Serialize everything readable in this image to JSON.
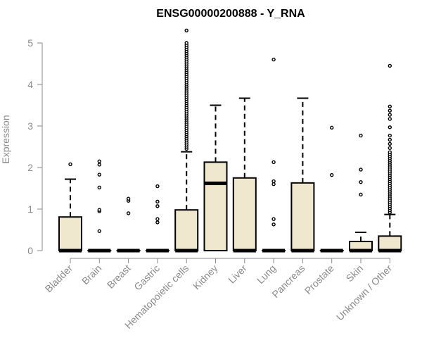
{
  "chart_data": {
    "type": "box",
    "title": "ENSG00000200888 - Y_RNA",
    "ylabel": "Expression",
    "xlabel": "",
    "ylim": [
      0,
      5
    ],
    "yticks": [
      "0",
      "1",
      "2",
      "3",
      "4",
      "5"
    ],
    "grid": false,
    "colors": {
      "box_fill": "#efe8cf",
      "box_stroke": "#000000",
      "axis": "#8a8a8a"
    },
    "categories": [
      "Bladder",
      "Brain",
      "Breast",
      "Gastric",
      "Hematopoietic cells",
      "Kidney",
      "Liver",
      "Lung",
      "Pancreas",
      "Prostate",
      "Skin",
      "Unknown / Other"
    ],
    "boxes": [
      {
        "category": "Bladder",
        "q1": 0,
        "median": 0,
        "q3": 0.81,
        "whisker_low": 0,
        "whisker_high": 1.72,
        "outliers": [
          2.08
        ]
      },
      {
        "category": "Brain",
        "q1": 0,
        "median": 0,
        "q3": 0,
        "whisker_low": 0,
        "whisker_high": 0,
        "outliers": [
          0.47,
          0.95,
          0.98,
          1.52,
          1.83,
          2.07,
          2.15
        ]
      },
      {
        "category": "Breast",
        "q1": 0,
        "median": 0,
        "q3": 0,
        "whisker_low": 0,
        "whisker_high": 0,
        "outliers": [
          0.9,
          1.2,
          1.25
        ]
      },
      {
        "category": "Gastric",
        "q1": 0,
        "median": 0,
        "q3": 0,
        "whisker_low": 0,
        "whisker_high": 0,
        "outliers": [
          0.68,
          0.76,
          1.07,
          1.18,
          1.55
        ]
      },
      {
        "category": "Hematopoietic cells",
        "q1": 0,
        "median": 0,
        "q3": 0.98,
        "whisker_low": 0,
        "whisker_high": 2.38,
        "outliers": [
          2.45,
          2.5,
          2.55,
          2.6,
          2.65,
          2.7,
          2.75,
          2.8,
          2.85,
          2.9,
          2.95,
          3.0,
          3.05,
          3.1,
          3.15,
          3.2,
          3.25,
          3.3,
          3.35,
          3.4,
          3.45,
          3.5,
          3.55,
          3.6,
          3.65,
          3.7,
          3.75,
          3.8,
          3.85,
          3.9,
          3.95,
          4.0,
          4.05,
          4.1,
          4.15,
          4.2,
          4.25,
          4.3,
          4.35,
          4.4,
          4.45,
          4.5,
          4.55,
          4.6,
          4.65,
          4.7,
          4.75,
          4.8,
          4.85,
          4.9,
          4.95,
          5.0,
          5.3
        ]
      },
      {
        "category": "Kidney",
        "q1": 0,
        "median": 1.62,
        "q3": 2.13,
        "whisker_low": 0,
        "whisker_high": 3.5,
        "outliers": []
      },
      {
        "category": "Liver",
        "q1": 0,
        "median": 0,
        "q3": 1.75,
        "whisker_low": 0,
        "whisker_high": 3.67,
        "outliers": []
      },
      {
        "category": "Lung",
        "q1": 0,
        "median": 0,
        "q3": 0,
        "whisker_low": 0,
        "whisker_high": 0,
        "outliers": [
          0.63,
          0.76,
          1.6,
          1.67,
          2.13,
          4.6
        ]
      },
      {
        "category": "Pancreas",
        "q1": 0,
        "median": 0,
        "q3": 1.63,
        "whisker_low": 0,
        "whisker_high": 3.67,
        "outliers": []
      },
      {
        "category": "Prostate",
        "q1": 0,
        "median": 0,
        "q3": 0,
        "whisker_low": 0,
        "whisker_high": 0,
        "outliers": [
          1.82,
          2.96
        ]
      },
      {
        "category": "Skin",
        "q1": 0,
        "median": 0,
        "q3": 0.22,
        "whisker_low": 0,
        "whisker_high": 0.44,
        "outliers": [
          1.35,
          1.65,
          1.95,
          2.77
        ]
      },
      {
        "category": "Unknown / Other",
        "q1": 0,
        "median": 0,
        "q3": 0.35,
        "whisker_low": 0,
        "whisker_high": 0.87,
        "outliers": [
          0.92,
          0.97,
          1.02,
          1.07,
          1.12,
          1.17,
          1.22,
          1.27,
          1.32,
          1.37,
          1.42,
          1.47,
          1.52,
          1.57,
          1.62,
          1.67,
          1.72,
          1.77,
          1.82,
          1.87,
          1.92,
          1.97,
          2.02,
          2.07,
          2.12,
          2.17,
          2.22,
          2.27,
          2.32,
          2.37,
          2.47,
          2.57,
          2.67,
          2.77,
          2.97,
          3.17,
          3.27,
          3.37,
          3.47,
          4.45
        ]
      }
    ]
  }
}
